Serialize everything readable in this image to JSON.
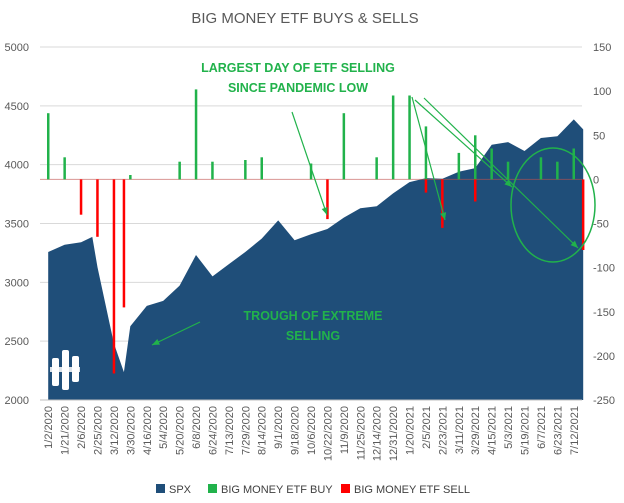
{
  "chart_data": {
    "type": "area",
    "title": "BIG MONEY ETF BUYS & SELLS",
    "x_tick_labels": [
      "1/2/2020",
      "1/21/2020",
      "2/6/2020",
      "2/25/2020",
      "3/12/2020",
      "3/30/2020",
      "4/16/2020",
      "5/4/2020",
      "5/20/2020",
      "6/8/2020",
      "6/24/2020",
      "7/13/2020",
      "7/29/2020",
      "8/14/2020",
      "9/1/2020",
      "9/18/2020",
      "10/6/2020",
      "10/22/2020",
      "11/9/2020",
      "11/25/2020",
      "12/14/2020",
      "12/31/2020",
      "1/20/2021",
      "2/5/2021",
      "2/23/2021",
      "3/11/2021",
      "3/29/2021",
      "4/15/2021",
      "5/3/2021",
      "5/19/2021",
      "6/7/2021",
      "6/23/2021",
      "7/12/2021"
    ],
    "y_left": {
      "ticks": [
        2000,
        2500,
        3000,
        3500,
        4000,
        4500,
        5000
      ],
      "ylim": [
        2000,
        5000
      ]
    },
    "y_right": {
      "ticks": [
        -250,
        -200,
        -150,
        -100,
        -50,
        0,
        50,
        100,
        150
      ],
      "ylim": [
        -250,
        150
      ]
    },
    "series": [
      {
        "name": "SPX",
        "type": "area",
        "axis": "left",
        "color": "#1f4e79",
        "x": [
          "1/2/2020",
          "1/21/2020",
          "2/6/2020",
          "2/19/2020",
          "2/25/2020",
          "3/12/2020",
          "3/23/2020",
          "3/30/2020",
          "4/16/2020",
          "5/4/2020",
          "5/20/2020",
          "6/8/2020",
          "6/24/2020",
          "7/13/2020",
          "7/29/2020",
          "8/14/2020",
          "9/1/2020",
          "9/18/2020",
          "10/6/2020",
          "10/22/2020",
          "11/9/2020",
          "11/25/2020",
          "12/14/2020",
          "12/31/2020",
          "1/20/2021",
          "2/5/2021",
          "2/23/2021",
          "3/11/2021",
          "3/29/2021",
          "4/15/2021",
          "5/3/2021",
          "5/19/2021",
          "6/7/2021",
          "6/23/2021",
          "7/12/2021",
          "7/20/2021"
        ],
        "values": [
          3258,
          3320,
          3340,
          3386,
          3128,
          2480,
          2237,
          2627,
          2800,
          2842,
          2972,
          3232,
          3050,
          3155,
          3258,
          3372,
          3526,
          3357,
          3408,
          3453,
          3550,
          3630,
          3647,
          3756,
          3852,
          3886,
          3881,
          3939,
          3971,
          4170,
          4192,
          4116,
          4227,
          4242,
          4385,
          4300
        ]
      },
      {
        "name": "BIG MONEY ETF BUY",
        "type": "bar",
        "axis": "right",
        "color": "#21b24b",
        "x": [
          "1/2/2020",
          "1/21/2020",
          "3/30/2020",
          "5/20/2020",
          "6/8/2020",
          "6/24/2020",
          "7/29/2020",
          "8/14/2020",
          "10/6/2020",
          "11/9/2020",
          "12/14/2020",
          "12/31/2020",
          "1/20/2021",
          "2/5/2021",
          "3/11/2021",
          "3/29/2021",
          "4/15/2021",
          "5/3/2021",
          "6/7/2021",
          "6/23/2021",
          "7/12/2021"
        ],
        "values": [
          75,
          25,
          5,
          20,
          102,
          20,
          22,
          25,
          18,
          75,
          25,
          95,
          95,
          60,
          30,
          50,
          35,
          20,
          25,
          20,
          35
        ]
      },
      {
        "name": "BIG MONEY ETF SELL",
        "type": "bar",
        "axis": "right",
        "color": "#ff0000",
        "x": [
          "2/6/2020",
          "2/25/2020",
          "3/12/2020",
          "3/23/2020",
          "10/22/2020",
          "2/5/2021",
          "2/23/2021",
          "3/29/2021",
          "7/20/2021"
        ],
        "values": [
          -40,
          -65,
          -220,
          -145,
          -45,
          -15,
          -55,
          -25,
          -80
        ]
      }
    ],
    "annotations": [
      {
        "text": [
          "LARGEST DAY OF ETF SELLING",
          "SINCE PANDEMIC LOW"
        ]
      },
      {
        "text": [
          "TROUGH OF EXTREME",
          "SELLING"
        ]
      }
    ],
    "legend": {
      "placement": "bottom",
      "entries": [
        "SPX",
        "BIG MONEY ETF BUY",
        "BIG MONEY ETF SELL"
      ]
    },
    "grid": true,
    "colors": {
      "spx": "#1f4e79",
      "buy": "#21b24b",
      "sell": "#ff0000",
      "annotation": "#21b24b",
      "grid": "#d9d9d9"
    }
  }
}
